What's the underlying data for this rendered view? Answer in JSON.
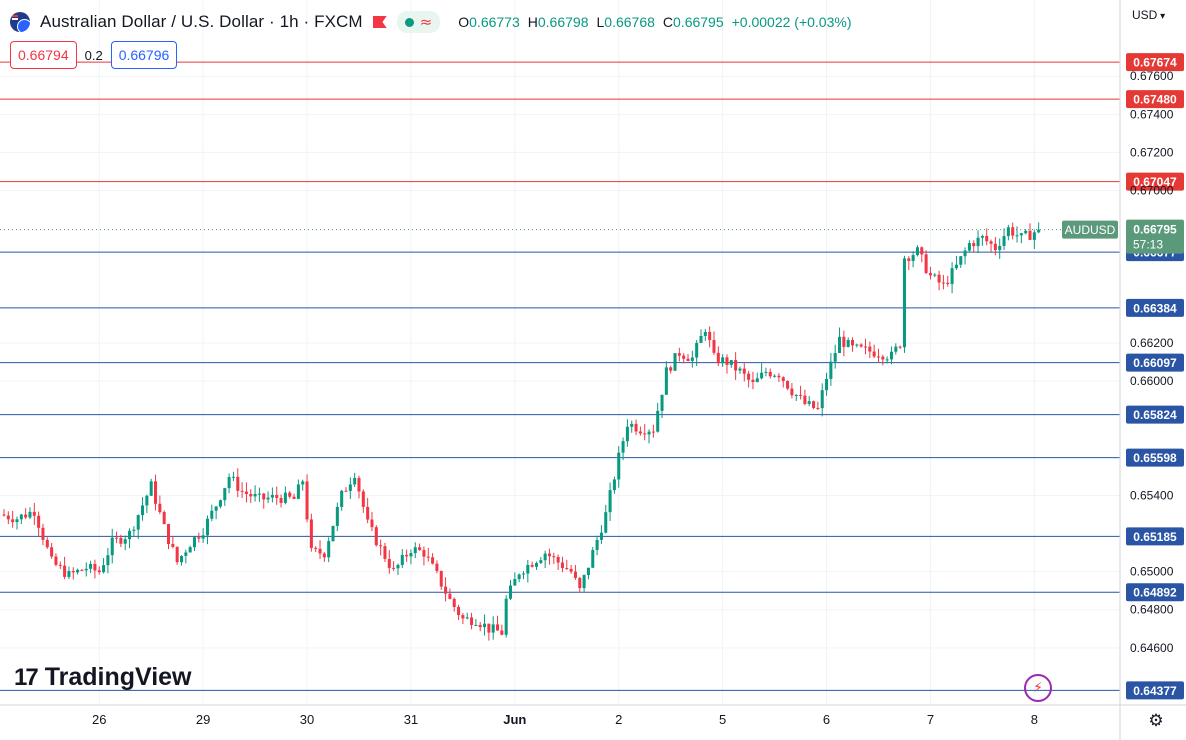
{
  "header": {
    "symbol_title": "Australian Dollar / U.S. Dollar · 1h · FXCM",
    "flag_icon": "aud-usd-flag-icon",
    "ohlc": {
      "open_label": "O",
      "open": "0.66773",
      "high_label": "H",
      "high": "0.66798",
      "low_label": "L",
      "low": "0.66768",
      "close_label": "C",
      "close": "0.66795",
      "change": "+0.00022 (+0.03%)"
    }
  },
  "quote": {
    "sell": "0.66794",
    "spread": "0.2",
    "buy": "0.66796"
  },
  "currency_selector": "USD",
  "brand": "TradingView",
  "colors": {
    "up": "#089981",
    "down": "#f23645",
    "support_line": "#2a55a5",
    "resistance_line": "#e53935",
    "price_line": "#5a9a7a"
  },
  "chart_data": {
    "type": "candlestick",
    "symbol": "AUDUSD",
    "timeframe": "1h",
    "ylim": [
      0.643,
      0.68
    ],
    "y_ticks": [
      "0.67600",
      "0.67400",
      "0.67200",
      "0.67000",
      "0.66200",
      "0.66000",
      "0.65400",
      "0.65000",
      "0.64800",
      "0.64600"
    ],
    "x_ticks": [
      {
        "label": "26",
        "hour": 22
      },
      {
        "label": "29",
        "hour": 46
      },
      {
        "label": "30",
        "hour": 70
      },
      {
        "label": "31",
        "hour": 94
      },
      {
        "label": "Jun",
        "hour": 118
      },
      {
        "label": "2",
        "hour": 142
      },
      {
        "label": "5",
        "hour": 166
      },
      {
        "label": "6",
        "hour": 190
      },
      {
        "label": "7",
        "hour": 214
      },
      {
        "label": "8",
        "hour": 238
      }
    ],
    "current_price": {
      "symbol": "AUDUSD",
      "value": 0.66795,
      "label": "0.66795",
      "countdown": "57:13"
    },
    "resistance_levels": [
      {
        "value": 0.67674,
        "label": "0.67674"
      },
      {
        "value": 0.6748,
        "label": "0.67480"
      },
      {
        "value": 0.67047,
        "label": "0.67047"
      }
    ],
    "support_levels": [
      {
        "value": 0.66677,
        "label": "0.66677"
      },
      {
        "value": 0.66384,
        "label": "0.66384"
      },
      {
        "value": 0.66097,
        "label": "0.66097"
      },
      {
        "value": 0.65824,
        "label": "0.65824"
      },
      {
        "value": 0.65598,
        "label": "0.65598"
      },
      {
        "value": 0.65185,
        "label": "0.65185"
      },
      {
        "value": 0.64892,
        "label": "0.64892"
      },
      {
        "value": 0.64377,
        "label": "0.64377"
      }
    ],
    "price_path": [
      [
        0,
        0.653
      ],
      [
        4,
        0.6528
      ],
      [
        8,
        0.6532
      ],
      [
        12,
        0.6505
      ],
      [
        16,
        0.6498
      ],
      [
        20,
        0.6502
      ],
      [
        23,
        0.65
      ],
      [
        26,
        0.6515
      ],
      [
        30,
        0.652
      ],
      [
        33,
        0.6535
      ],
      [
        35,
        0.6545
      ],
      [
        38,
        0.6523
      ],
      [
        41,
        0.6505
      ],
      [
        44,
        0.6515
      ],
      [
        47,
        0.6522
      ],
      [
        50,
        0.6535
      ],
      [
        53,
        0.655
      ],
      [
        56,
        0.6542
      ],
      [
        60,
        0.6538
      ],
      [
        64,
        0.6539
      ],
      [
        68,
        0.6538
      ],
      [
        70,
        0.6548
      ],
      [
        72,
        0.651
      ],
      [
        75,
        0.651
      ],
      [
        79,
        0.654
      ],
      [
        82,
        0.6552
      ],
      [
        85,
        0.6525
      ],
      [
        88,
        0.6512
      ],
      [
        91,
        0.65
      ],
      [
        95,
        0.6512
      ],
      [
        98,
        0.651
      ],
      [
        101,
        0.6498
      ],
      [
        104,
        0.6485
      ],
      [
        107,
        0.6475
      ],
      [
        110,
        0.6475
      ],
      [
        113,
        0.647
      ],
      [
        116,
        0.6468
      ],
      [
        117,
        0.6485
      ],
      [
        120,
        0.65
      ],
      [
        123,
        0.6505
      ],
      [
        126,
        0.651
      ],
      [
        129,
        0.6505
      ],
      [
        132,
        0.65
      ],
      [
        134,
        0.649
      ],
      [
        137,
        0.651
      ],
      [
        140,
        0.653
      ],
      [
        143,
        0.656
      ],
      [
        145,
        0.6578
      ],
      [
        148,
        0.6575
      ],
      [
        151,
        0.6575
      ],
      [
        154,
        0.6605
      ],
      [
        157,
        0.6615
      ],
      [
        160,
        0.6612
      ],
      [
        163,
        0.6628
      ],
      [
        165,
        0.6612
      ],
      [
        168,
        0.661
      ],
      [
        171,
        0.6605
      ],
      [
        174,
        0.6598
      ],
      [
        177,
        0.6605
      ],
      [
        180,
        0.6604
      ],
      [
        183,
        0.6595
      ],
      [
        186,
        0.6588
      ],
      [
        189,
        0.6585
      ],
      [
        191,
        0.6602
      ],
      [
        194,
        0.6622
      ],
      [
        197,
        0.6617
      ],
      [
        200,
        0.6616
      ],
      [
        203,
        0.6615
      ],
      [
        206,
        0.6613
      ],
      [
        208,
        0.662
      ],
      [
        209,
        0.6665
      ],
      [
        212,
        0.6668
      ],
      [
        215,
        0.6655
      ],
      [
        218,
        0.665
      ],
      [
        221,
        0.666
      ],
      [
        224,
        0.6672
      ],
      [
        227,
        0.6675
      ],
      [
        230,
        0.667
      ],
      [
        233,
        0.668
      ],
      [
        236,
        0.6675
      ],
      [
        238,
        0.6677
      ],
      [
        240,
        0.66795
      ]
    ]
  }
}
